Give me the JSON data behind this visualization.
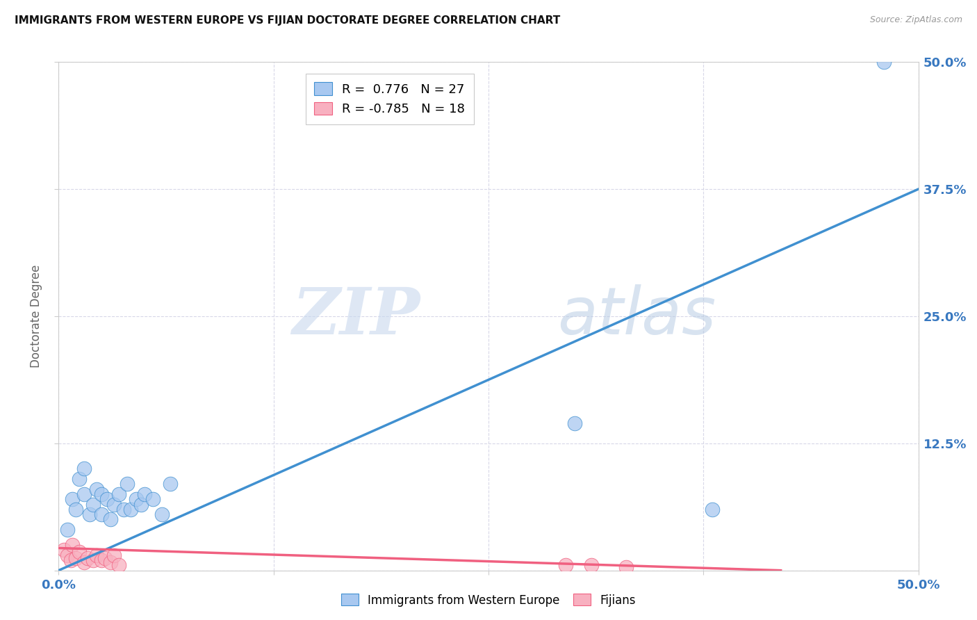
{
  "title": "IMMIGRANTS FROM WESTERN EUROPE VS FIJIAN DOCTORATE DEGREE CORRELATION CHART",
  "source": "Source: ZipAtlas.com",
  "ylabel": "Doctorate Degree",
  "xlim": [
    0.0,
    0.5
  ],
  "ylim": [
    0.0,
    0.5
  ],
  "xticks": [
    0.0,
    0.125,
    0.25,
    0.375,
    0.5
  ],
  "yticks": [
    0.0,
    0.125,
    0.25,
    0.375,
    0.5
  ],
  "blue_scatter_x": [
    0.005,
    0.008,
    0.01,
    0.012,
    0.015,
    0.015,
    0.018,
    0.02,
    0.022,
    0.025,
    0.025,
    0.028,
    0.03,
    0.032,
    0.035,
    0.038,
    0.04,
    0.042,
    0.045,
    0.048,
    0.05,
    0.055,
    0.06,
    0.065,
    0.3,
    0.38,
    0.48
  ],
  "blue_scatter_y": [
    0.04,
    0.07,
    0.06,
    0.09,
    0.1,
    0.075,
    0.055,
    0.065,
    0.08,
    0.055,
    0.075,
    0.07,
    0.05,
    0.065,
    0.075,
    0.06,
    0.085,
    0.06,
    0.07,
    0.065,
    0.075,
    0.07,
    0.055,
    0.085,
    0.145,
    0.06,
    0.5
  ],
  "pink_scatter_x": [
    0.003,
    0.005,
    0.007,
    0.008,
    0.01,
    0.012,
    0.015,
    0.017,
    0.02,
    0.022,
    0.025,
    0.027,
    0.03,
    0.032,
    0.035,
    0.295,
    0.31,
    0.33
  ],
  "pink_scatter_y": [
    0.02,
    0.015,
    0.01,
    0.025,
    0.012,
    0.018,
    0.008,
    0.012,
    0.01,
    0.015,
    0.01,
    0.012,
    0.008,
    0.015,
    0.005,
    0.005,
    0.005,
    0.003
  ],
  "blue_line_x": [
    0.0,
    0.5
  ],
  "blue_line_y": [
    0.0,
    0.375
  ],
  "pink_line_x": [
    0.0,
    0.42
  ],
  "pink_line_y": [
    0.022,
    0.0
  ],
  "blue_color": "#A8C8F0",
  "pink_color": "#F8B0C0",
  "blue_line_color": "#4090D0",
  "pink_line_color": "#F06080",
  "legend_blue_r": "0.776",
  "legend_blue_n": "27",
  "legend_pink_r": "-0.785",
  "legend_pink_n": "18",
  "watermark_zip": "ZIP",
  "watermark_atlas": "atlas",
  "background_color": "#ffffff",
  "grid_color": "#d8d8e8"
}
